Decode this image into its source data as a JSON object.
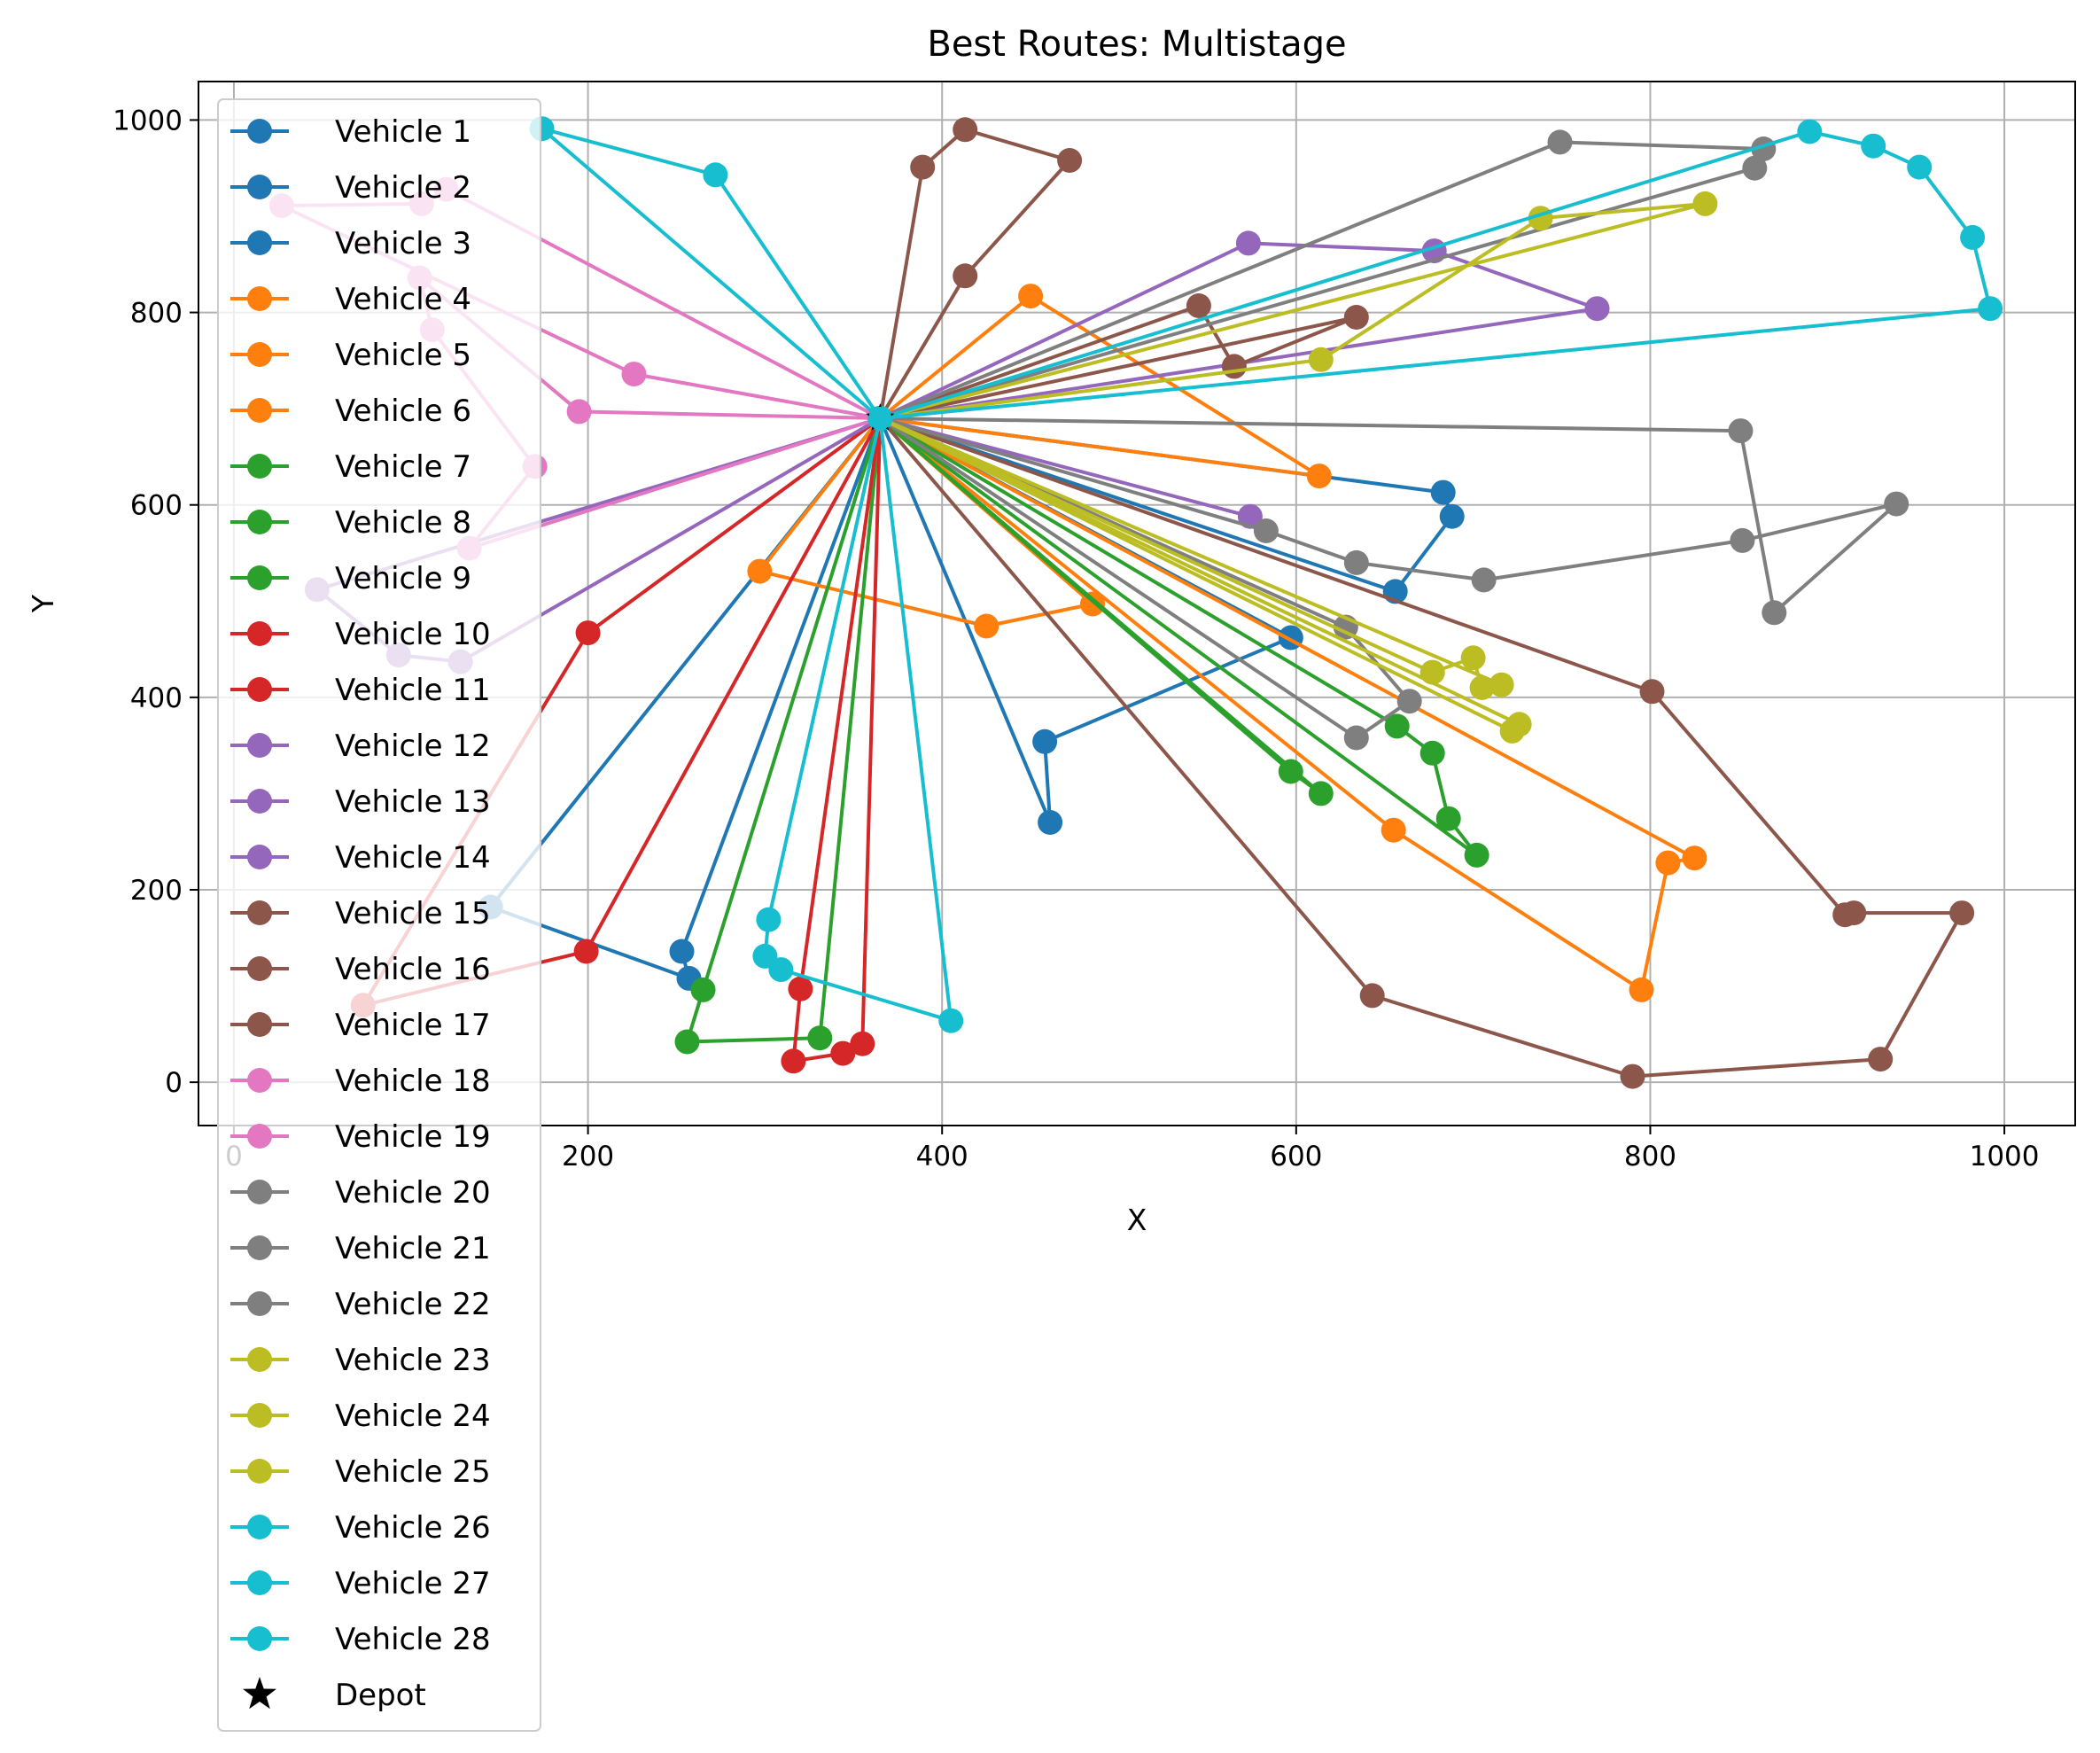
{
  "chart_data": {
    "type": "line",
    "title": "Best Routes: Multistage",
    "xlabel": "X",
    "ylabel": "Y",
    "xlim": [
      -20,
      1040
    ],
    "ylim": [
      -45,
      1040
    ],
    "xticks": [
      0,
      200,
      400,
      600,
      800,
      1000
    ],
    "yticks": [
      0,
      200,
      400,
      600,
      800,
      1000
    ],
    "grid": true,
    "legend_position": "upper-left",
    "depot": {
      "name": "Depot",
      "x": 365,
      "y": 690
    },
    "series": [
      {
        "name": "Vehicle 1",
        "color": "#1f77b4",
        "points": [
          [
            365,
            690
          ],
          [
            597,
            462
          ],
          [
            458,
            354
          ],
          [
            461,
            270
          ],
          [
            365,
            690
          ]
        ]
      },
      {
        "name": "Vehicle 2",
        "color": "#1f77b4",
        "points": [
          [
            365,
            690
          ],
          [
            656,
            510
          ],
          [
            688,
            588
          ],
          [
            683,
            613
          ],
          [
            365,
            690
          ]
        ]
      },
      {
        "name": "Vehicle 3",
        "color": "#1f77b4",
        "points": [
          [
            365,
            690
          ],
          [
            253,
            136
          ],
          [
            257,
            108
          ],
          [
            145,
            182
          ],
          [
            365,
            690
          ]
        ]
      },
      {
        "name": "Vehicle 4",
        "color": "#ff7f0e",
        "points": [
          [
            365,
            690
          ],
          [
            297,
            531
          ],
          [
            425,
            474
          ],
          [
            485,
            497
          ],
          [
            365,
            690
          ]
        ]
      },
      {
        "name": "Vehicle 5",
        "color": "#ff7f0e",
        "points": [
          [
            365,
            690
          ],
          [
            655,
            262
          ],
          [
            795,
            96
          ],
          [
            810,
            228
          ],
          [
            825,
            233
          ],
          [
            365,
            690
          ]
        ]
      },
      {
        "name": "Vehicle 6",
        "color": "#ff7f0e",
        "points": [
          [
            365,
            690
          ],
          [
            450,
            817
          ],
          [
            613,
            630
          ],
          [
            365,
            690
          ]
        ]
      },
      {
        "name": "Vehicle 7",
        "color": "#2ca02c",
        "points": [
          [
            365,
            690
          ],
          [
            265,
            96
          ],
          [
            256,
            42
          ],
          [
            331,
            46
          ],
          [
            365,
            690
          ]
        ]
      },
      {
        "name": "Vehicle 8",
        "color": "#2ca02c",
        "points": [
          [
            365,
            690
          ],
          [
            597,
            323
          ],
          [
            614,
            300
          ],
          [
            365,
            690
          ]
        ]
      },
      {
        "name": "Vehicle 9",
        "color": "#2ca02c",
        "points": [
          [
            365,
            690
          ],
          [
            657,
            370
          ],
          [
            677,
            342
          ],
          [
            686,
            274
          ],
          [
            702,
            236
          ],
          [
            365,
            690
          ]
        ]
      },
      {
        "name": "Vehicle 10",
        "color": "#d62728",
        "points": [
          [
            365,
            690
          ],
          [
            320,
            97
          ],
          [
            316,
            22
          ],
          [
            344,
            30
          ],
          [
            355,
            40
          ],
          [
            365,
            690
          ]
        ]
      },
      {
        "name": "Vehicle 11",
        "color": "#d62728",
        "points": [
          [
            365,
            690
          ],
          [
            199,
            136
          ],
          [
            73,
            80
          ],
          [
            200,
            467
          ],
          [
            365,
            690
          ]
        ]
      },
      {
        "name": "Vehicle 12",
        "color": "#9467bd",
        "points": [
          [
            365,
            690
          ],
          [
            574,
            588
          ],
          [
            365,
            690
          ]
        ]
      },
      {
        "name": "Vehicle 13",
        "color": "#9467bd",
        "points": [
          [
            365,
            690
          ],
          [
            573,
            872
          ],
          [
            678,
            864
          ],
          [
            770,
            804
          ],
          [
            365,
            690
          ]
        ]
      },
      {
        "name": "Vehicle 14",
        "color": "#9467bd",
        "points": [
          [
            365,
            690
          ],
          [
            47,
            512
          ],
          [
            93,
            444
          ],
          [
            128,
            437
          ],
          [
            365,
            690
          ]
        ]
      },
      {
        "name": "Vehicle 15",
        "color": "#8c564b",
        "points": [
          [
            365,
            690
          ],
          [
            389,
            951
          ],
          [
            413,
            990
          ],
          [
            472,
            958
          ],
          [
            413,
            838
          ],
          [
            365,
            690
          ]
        ]
      },
      {
        "name": "Vehicle 16",
        "color": "#8c564b",
        "points": [
          [
            365,
            690
          ],
          [
            643,
            90
          ],
          [
            790,
            6
          ],
          [
            930,
            24
          ],
          [
            976,
            176
          ],
          [
            915,
            176
          ],
          [
            910,
            174
          ],
          [
            801,
            406
          ],
          [
            365,
            690
          ]
        ]
      },
      {
        "name": "Vehicle 17",
        "color": "#8c564b",
        "points": [
          [
            365,
            690
          ],
          [
            545,
            807
          ],
          [
            565,
            744
          ],
          [
            634,
            795
          ],
          [
            365,
            690
          ]
        ]
      },
      {
        "name": "Vehicle 18",
        "color": "#e377c2",
        "points": [
          [
            365,
            690
          ],
          [
            226,
            736
          ],
          [
            27,
            911
          ],
          [
            106,
            913
          ],
          [
            120,
            928
          ],
          [
            365,
            690
          ]
        ]
      },
      {
        "name": "Vehicle 19",
        "color": "#e377c2",
        "points": [
          [
            365,
            690
          ],
          [
            195,
            697
          ],
          [
            105,
            836
          ],
          [
            112,
            782
          ],
          [
            170,
            640
          ],
          [
            133,
            555
          ],
          [
            365,
            690
          ]
        ]
      },
      {
        "name": "Vehicle 20",
        "color": "#7f7f7f",
        "points": [
          [
            365,
            690
          ],
          [
            634,
            358
          ],
          [
            664,
            396
          ],
          [
            628,
            473
          ],
          [
            365,
            690
          ]
        ]
      },
      {
        "name": "Vehicle 21",
        "color": "#7f7f7f",
        "points": [
          [
            365,
            690
          ],
          [
            749,
            977
          ],
          [
            864,
            970
          ],
          [
            859,
            950
          ],
          [
            365,
            690
          ]
        ]
      },
      {
        "name": "Vehicle 22",
        "color": "#7f7f7f",
        "points": [
          [
            365,
            690
          ],
          [
            851,
            677
          ],
          [
            870,
            488
          ],
          [
            939,
            601
          ],
          [
            852,
            563
          ],
          [
            706,
            522
          ],
          [
            634,
            540
          ],
          [
            583,
            573
          ],
          [
            365,
            690
          ]
        ]
      },
      {
        "name": "Vehicle 23",
        "color": "#bcbd22",
        "points": [
          [
            365,
            690
          ],
          [
            614,
            751
          ],
          [
            738,
            898
          ],
          [
            831,
            913
          ],
          [
            365,
            690
          ]
        ]
      },
      {
        "name": "Vehicle 24",
        "color": "#bcbd22",
        "points": [
          [
            365,
            690
          ],
          [
            677,
            426
          ],
          [
            700,
            441
          ],
          [
            705,
            410
          ],
          [
            716,
            413
          ],
          [
            365,
            690
          ]
        ]
      },
      {
        "name": "Vehicle 25",
        "color": "#bcbd22",
        "points": [
          [
            365,
            690
          ],
          [
            722,
            365
          ],
          [
            726,
            372
          ],
          [
            365,
            690
          ]
        ]
      },
      {
        "name": "Vehicle 26",
        "color": "#17becf",
        "points": [
          [
            365,
            690
          ],
          [
            405,
            64
          ],
          [
            309,
            117
          ],
          [
            300,
            131
          ],
          [
            302,
            169
          ],
          [
            365,
            690
          ]
        ]
      },
      {
        "name": "Vehicle 27",
        "color": "#17becf",
        "points": [
          [
            365,
            690
          ],
          [
            174,
            991
          ],
          [
            272,
            943
          ],
          [
            365,
            690
          ]
        ]
      },
      {
        "name": "Vehicle 28",
        "color": "#17becf",
        "points": [
          [
            365,
            690
          ],
          [
            890,
            988
          ],
          [
            926,
            973
          ],
          [
            952,
            951
          ],
          [
            982,
            878
          ],
          [
            992,
            804
          ],
          [
            365,
            690
          ]
        ]
      }
    ]
  }
}
